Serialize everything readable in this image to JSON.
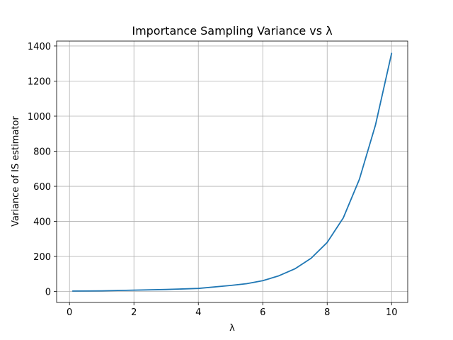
{
  "chart_data": {
    "type": "line",
    "title": "Importance Sampling Variance vs λ",
    "xlabel": "λ",
    "ylabel": "Variance of IS estimator",
    "xlim": [
      -0.4,
      10.5
    ],
    "ylim": [
      -62,
      1428
    ],
    "xticks": [
      0,
      2,
      4,
      6,
      8,
      10
    ],
    "xtick_labels": [
      "0",
      "2",
      "4",
      "6",
      "8",
      "10"
    ],
    "yticks": [
      0,
      200,
      400,
      600,
      800,
      1000,
      1200,
      1400
    ],
    "ytick_labels": [
      "0",
      "200",
      "400",
      "600",
      "800",
      "1000",
      "1200",
      "1400"
    ],
    "grid": true,
    "series": [
      {
        "color": "#1f77b4",
        "x": [
          0.1,
          1,
          2,
          3,
          4,
          5,
          5.5,
          6,
          6.5,
          7,
          7.5,
          8,
          8.5,
          9,
          9.5,
          10
        ],
        "y": [
          3,
          4,
          8,
          12,
          18,
          35,
          45,
          62,
          90,
          130,
          190,
          280,
          420,
          640,
          950,
          1358
        ]
      }
    ]
  }
}
